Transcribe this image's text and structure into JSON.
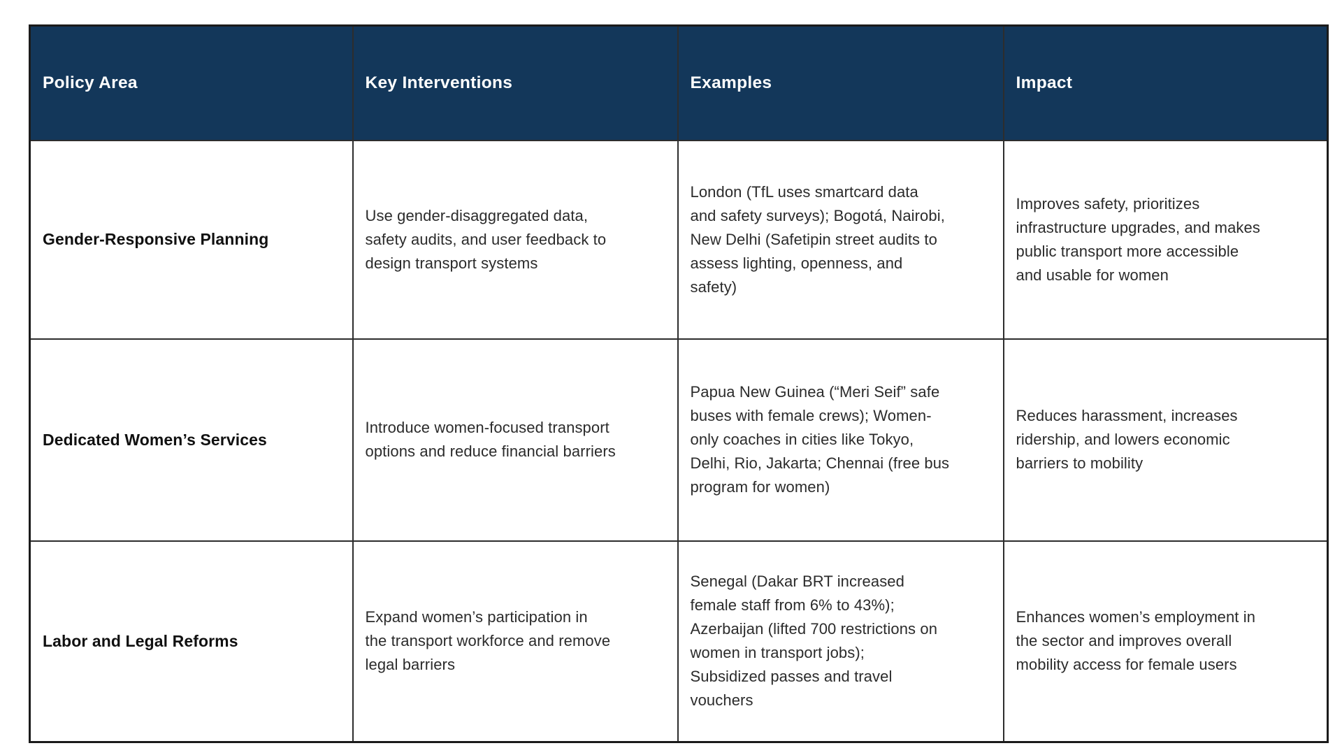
{
  "table": {
    "columns": [
      {
        "label": "Policy Area"
      },
      {
        "label": "Key Interventions"
      },
      {
        "label": "Examples"
      },
      {
        "label": "Impact"
      }
    ],
    "rows": [
      {
        "policy_area": "Gender-Responsive Planning",
        "key_interventions": "Use gender-disaggregated data,\nsafety audits, and user feedback to\ndesign transport systems",
        "examples": "London (TfL uses smartcard data\nand safety surveys); Bogotá, Nairobi,\nNew Delhi (Safetipin street audits to\nassess lighting, openness, and\nsafety)",
        "impact": "Improves safety, prioritizes\ninfrastructure upgrades, and makes\npublic transport more accessible\nand usable for women"
      },
      {
        "policy_area": "Dedicated Women’s Services",
        "key_interventions": "Introduce women-focused transport\noptions and reduce financial barriers",
        "examples": "Papua New Guinea (“Meri Seif” safe\nbuses with female crews); Women-\nonly coaches in cities like Tokyo,\nDelhi, Rio, Jakarta; Chennai (free bus\nprogram for women)",
        "impact": "Reduces harassment, increases\nridership, and lowers economic\nbarriers to mobility"
      },
      {
        "policy_area": "Labor and Legal Reforms",
        "key_interventions": "Expand women’s participation in\nthe transport workforce and remove\nlegal barriers",
        "examples": "Senegal (Dakar BRT increased\nfemale staff from 6% to 43%);\nAzerbaijan (lifted 700 restrictions on\nwomen in transport jobs);\nSubsidized passes and travel\nvouchers",
        "impact": "Enhances women’s employment in\nthe sector and improves overall\nmobility access for female users"
      }
    ],
    "colors": {
      "header_bg": "#13375A",
      "header_text": "#FFFFFF",
      "body_text": "#2B2B2B",
      "border": "#2D2D2D"
    }
  }
}
